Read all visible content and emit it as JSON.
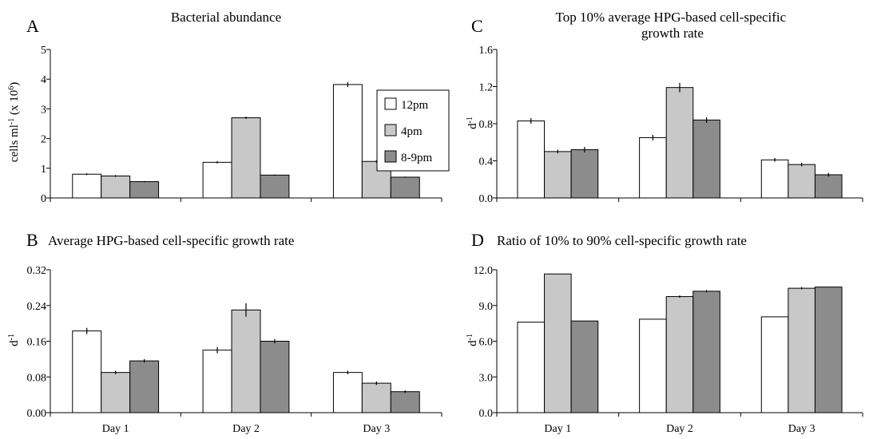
{
  "figure": {
    "panels": [
      "A",
      "B",
      "C",
      "D"
    ],
    "legend": {
      "entries": [
        "12pm",
        "4pm",
        "8-9pm"
      ]
    }
  },
  "colors": {
    "12pm": "#ffffff",
    "4pm": "#c8c8c8",
    "8-9pm": "#8c8c8c",
    "stroke": "#000000"
  },
  "chart_data": [
    {
      "panel": "A",
      "type": "bar",
      "title": "Bacterial abundance",
      "ylabel": "cells ml-1 (x 10^6)",
      "ylabel_parts": {
        "pre": "cells ml",
        "sup1": "-1",
        "mid": " (x 10",
        "sup2": "6",
        "post": ")"
      },
      "ylim": [
        0,
        5
      ],
      "yticks": [
        "0",
        "1",
        "2",
        "3",
        "4",
        "5"
      ],
      "categories": [
        "Day 1",
        "Day 2",
        "Day 3"
      ],
      "show_category_labels": false,
      "series": [
        {
          "name": "12pm",
          "values": [
            0.8,
            1.2,
            3.82
          ],
          "errors": [
            0.03,
            0.04,
            0.08
          ]
        },
        {
          "name": "4pm",
          "values": [
            0.74,
            2.7,
            1.23
          ],
          "errors": [
            0.03,
            0.04,
            0.04
          ]
        },
        {
          "name": "8-9pm",
          "values": [
            0.55,
            0.77,
            0.7
          ],
          "errors": [
            0.02,
            0.02,
            0.02
          ]
        }
      ],
      "legend": "inside-right"
    },
    {
      "panel": "B",
      "type": "bar",
      "title": "Average HPG-based cell-specific growth rate",
      "ylabel": "d-1",
      "ylabel_parts": {
        "pre": "d",
        "sup1": "-1"
      },
      "ylim": [
        0,
        0.32
      ],
      "yticks": [
        "0.00",
        "0.08",
        "0.16",
        "0.24",
        "0.32"
      ],
      "categories": [
        "Day 1",
        "Day 2",
        "Day 3"
      ],
      "show_category_labels": true,
      "series": [
        {
          "name": "12pm",
          "values": [
            0.183,
            0.14,
            0.09
          ],
          "errors": [
            0.007,
            0.007,
            0.004
          ]
        },
        {
          "name": "4pm",
          "values": [
            0.09,
            0.23,
            0.066
          ],
          "errors": [
            0.004,
            0.015,
            0.004
          ]
        },
        {
          "name": "8-9pm",
          "values": [
            0.116,
            0.16,
            0.047
          ],
          "errors": [
            0.004,
            0.005,
            0.003
          ]
        }
      ]
    },
    {
      "panel": "C",
      "type": "bar",
      "title": "Top 10% average HPG-based cell-specific growth rate",
      "title_lines": [
        "Top 10% average HPG-based cell-specific",
        "growth rate"
      ],
      "ylabel": "d-1",
      "ylabel_parts": {
        "pre": "d",
        "sup1": "-1"
      },
      "ylim": [
        0,
        1.6
      ],
      "yticks": [
        "0.0",
        "0.4",
        "0.8",
        "1.2",
        "1.6"
      ],
      "categories": [
        "Day 1",
        "Day 2",
        "Day 3"
      ],
      "show_category_labels": false,
      "series": [
        {
          "name": "12pm",
          "values": [
            0.83,
            0.65,
            0.41
          ],
          "errors": [
            0.03,
            0.03,
            0.02
          ]
        },
        {
          "name": "4pm",
          "values": [
            0.5,
            1.19,
            0.36
          ],
          "errors": [
            0.02,
            0.05,
            0.02
          ]
        },
        {
          "name": "8-9pm",
          "values": [
            0.52,
            0.84,
            0.25
          ],
          "errors": [
            0.03,
            0.03,
            0.02
          ]
        }
      ]
    },
    {
      "panel": "D",
      "type": "bar",
      "title": "Ratio of 10% to 90% cell-specific growth rate",
      "ylabel": "d-1",
      "ylabel_parts": {
        "pre": "d",
        "sup1": "-1"
      },
      "ylim": [
        0,
        12
      ],
      "yticks": [
        "0.0",
        "3.0",
        "6.0",
        "9.0",
        "12.0"
      ],
      "categories": [
        "Day 1",
        "Day 2",
        "Day 3"
      ],
      "show_category_labels": true,
      "series": [
        {
          "name": "12pm",
          "values": [
            7.6,
            7.85,
            8.05
          ],
          "errors": [
            0,
            0,
            0
          ]
        },
        {
          "name": "4pm",
          "values": [
            11.65,
            9.75,
            10.45
          ],
          "errors": [
            0,
            0.1,
            0.1
          ]
        },
        {
          "name": "8-9pm",
          "values": [
            7.7,
            10.2,
            10.55
          ],
          "errors": [
            0,
            0.1,
            0
          ]
        }
      ]
    }
  ]
}
